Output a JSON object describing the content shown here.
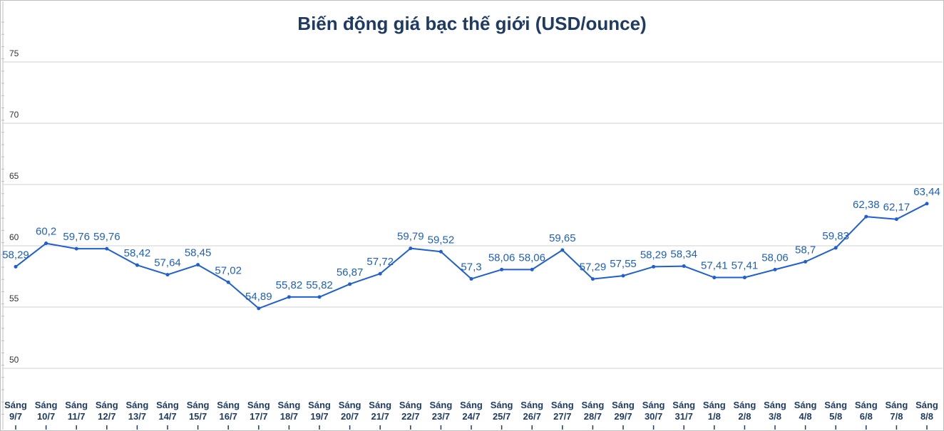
{
  "chart_data": {
    "type": "line",
    "title": "Biến động giá bạc thế giới (USD/ounce)",
    "xlabel": "",
    "ylabel": "",
    "ylim": [
      47,
      80
    ],
    "yticks": [
      "50",
      "55",
      "60",
      "65",
      "70",
      "75"
    ],
    "categories": [
      [
        "Sáng",
        "9/7"
      ],
      [
        "Sáng",
        "10/7"
      ],
      [
        "Sáng",
        "11/7"
      ],
      [
        "Sáng",
        "12/7"
      ],
      [
        "Sáng",
        "13/7"
      ],
      [
        "Sáng",
        "14/7"
      ],
      [
        "Sáng",
        "15/7"
      ],
      [
        "Sáng",
        "16/7"
      ],
      [
        "Sáng",
        "17/7"
      ],
      [
        "Sáng",
        "18/7"
      ],
      [
        "Sáng",
        "19/7"
      ],
      [
        "Sáng",
        "20/7"
      ],
      [
        "Sáng",
        "21/7"
      ],
      [
        "Sáng",
        "22/7"
      ],
      [
        "Sáng",
        "23/7"
      ],
      [
        "Sáng",
        "24/7"
      ],
      [
        "Sáng",
        "25/7"
      ],
      [
        "Sáng",
        "26/7"
      ],
      [
        "Sáng",
        "27/7"
      ],
      [
        "Sáng",
        "28/7"
      ],
      [
        "Sáng",
        "29/7"
      ],
      [
        "Sáng",
        "30/7"
      ],
      [
        "Sáng",
        "31/7"
      ],
      [
        "Sáng",
        "1/8"
      ],
      [
        "Sáng",
        "2/8"
      ],
      [
        "Sáng",
        "3/8"
      ],
      [
        "Sáng",
        "4/8"
      ],
      [
        "Sáng",
        "5/8"
      ],
      [
        "Sáng",
        "6/8"
      ],
      [
        "Sáng",
        "7/8"
      ],
      [
        "Sáng",
        "8/8"
      ]
    ],
    "values": [
      58.29,
      60.2,
      59.76,
      59.76,
      58.42,
      57.64,
      58.45,
      57.02,
      54.89,
      55.82,
      55.82,
      56.87,
      57.72,
      59.79,
      59.52,
      57.3,
      58.06,
      58.06,
      59.65,
      57.29,
      57.55,
      58.29,
      58.34,
      57.41,
      57.41,
      58.06,
      58.7,
      59.83,
      62.38,
      62.17,
      63.44
    ],
    "value_labels": [
      "58,29",
      "60,2",
      "59,76",
      "59,76",
      "58,42",
      "57,64",
      "58,45",
      "57,02",
      "54,89",
      "55,82",
      "55,82",
      "56,87",
      "57,72",
      "59,79",
      "59,52",
      "57,3",
      "58,06",
      "58,06",
      "59,65",
      "57,29",
      "57,55",
      "58,29",
      "58,34",
      "57,41",
      "57,41",
      "58,06",
      "58,7",
      "59,83",
      "62,38",
      "62,17",
      "63,44"
    ],
    "line_color": "#1f5fd0",
    "label_color": "#1f5fbf",
    "grid": true,
    "legend": "none"
  }
}
